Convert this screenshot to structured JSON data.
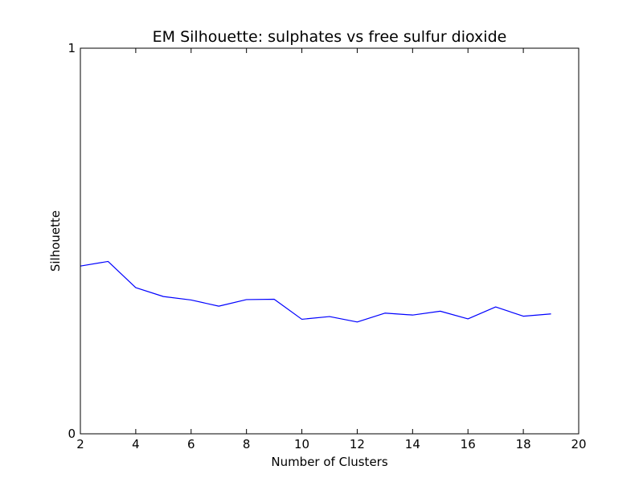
{
  "chart_data": {
    "type": "line",
    "title": "EM Silhouette: sulphates vs free sulfur dioxide",
    "xlabel": "Number of Clusters",
    "ylabel": "Silhouette",
    "xlim": [
      2,
      20
    ],
    "ylim": [
      0,
      1
    ],
    "xticks": [
      2,
      4,
      6,
      8,
      10,
      12,
      14,
      16,
      18,
      20
    ],
    "yticks": [
      0,
      1
    ],
    "grid": false,
    "line_color": "#0000ff",
    "series": [
      {
        "x": [
          2,
          3,
          4,
          5,
          6,
          7,
          8,
          9,
          10,
          11,
          12,
          13,
          14,
          15,
          16,
          17,
          18,
          19
        ],
        "values": [
          0.435,
          0.447,
          0.379,
          0.356,
          0.347,
          0.331,
          0.348,
          0.349,
          0.297,
          0.304,
          0.29,
          0.313,
          0.308,
          0.318,
          0.298,
          0.329,
          0.305,
          0.311
        ]
      }
    ]
  }
}
